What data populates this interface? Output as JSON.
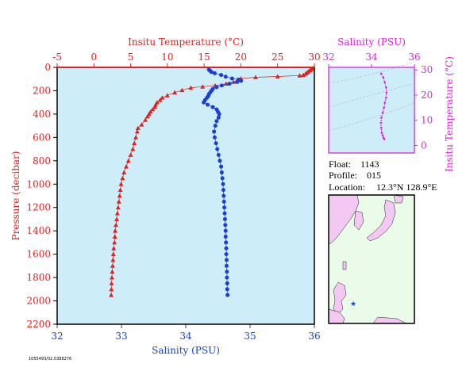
{
  "chart_data": [
    {
      "type": "scatter",
      "title": "",
      "ylabel": "Pressure (decibar)",
      "ylim": [
        0,
        2200
      ],
      "y_reversed": true,
      "y_ticks": [
        "0",
        "200",
        "400",
        "600",
        "800",
        "1000",
        "1200",
        "1400",
        "1600",
        "1800",
        "2000",
        "2200"
      ],
      "x_top_label": "Insitu Temperature (°C)",
      "x_top_lim": [
        -5,
        30
      ],
      "x_top_ticks": [
        "-5",
        "0",
        "5",
        "10",
        "15",
        "20",
        "25",
        "30"
      ],
      "x_bottom_label": "Salinity (PSU)",
      "x_bottom_lim": [
        32,
        36
      ],
      "x_bottom_ticks": [
        "32",
        "33",
        "34",
        "35",
        "36"
      ],
      "background": "#cdeef8",
      "series": [
        {
          "axis": "top",
          "marker": "triangle",
          "color": "#dd2222",
          "points": [
            [
              29.8,
              5
            ],
            [
              29.6,
              15
            ],
            [
              29.4,
              25
            ],
            [
              29.2,
              35
            ],
            [
              29.0,
              45
            ],
            [
              28.8,
              55
            ],
            [
              28.5,
              65
            ],
            [
              28.0,
              70
            ],
            [
              25.0,
              78
            ],
            [
              22.0,
              85
            ],
            [
              20.0,
              95
            ],
            [
              19.6,
              105
            ],
            [
              19.0,
              125
            ],
            [
              18.0,
              140
            ],
            [
              16.5,
              155
            ],
            [
              14.8,
              165
            ],
            [
              13.2,
              175
            ],
            [
              12.0,
              195
            ],
            [
              11.0,
              215
            ],
            [
              10.0,
              240
            ],
            [
              9.3,
              260
            ],
            [
              9.0,
              280
            ],
            [
              8.6,
              300
            ],
            [
              8.4,
              320
            ],
            [
              8.3,
              340
            ],
            [
              8.0,
              360
            ],
            [
              7.7,
              380
            ],
            [
              7.5,
              400
            ],
            [
              7.3,
              420
            ],
            [
              7.0,
              450
            ],
            [
              6.5,
              490
            ],
            [
              6.0,
              520
            ],
            [
              5.9,
              550
            ],
            [
              5.7,
              600
            ],
            [
              5.5,
              650
            ],
            [
              5.3,
              700
            ],
            [
              5.0,
              750
            ],
            [
              4.7,
              800
            ],
            [
              4.4,
              850
            ],
            [
              4.1,
              900
            ],
            [
              3.9,
              950
            ],
            [
              3.7,
              1000
            ],
            [
              3.6,
              1050
            ],
            [
              3.5,
              1100
            ],
            [
              3.4,
              1150
            ],
            [
              3.3,
              1200
            ],
            [
              3.2,
              1250
            ],
            [
              3.1,
              1300
            ],
            [
              3.0,
              1350
            ],
            [
              2.9,
              1400
            ],
            [
              2.85,
              1450
            ],
            [
              2.8,
              1500
            ],
            [
              2.7,
              1550
            ],
            [
              2.65,
              1600
            ],
            [
              2.6,
              1650
            ],
            [
              2.55,
              1700
            ],
            [
              2.5,
              1750
            ],
            [
              2.45,
              1800
            ],
            [
              2.4,
              1850
            ],
            [
              2.38,
              1900
            ],
            [
              2.35,
              1950
            ]
          ]
        },
        {
          "axis": "bottom",
          "marker": "circle",
          "color": "#1a3fd0",
          "points": [
            [
              34.36,
              20
            ],
            [
              34.38,
              30
            ],
            [
              34.4,
              40
            ],
            [
              34.45,
              50
            ],
            [
              34.55,
              65
            ],
            [
              34.62,
              80
            ],
            [
              34.72,
              95
            ],
            [
              34.82,
              105
            ],
            [
              34.86,
              115
            ],
            [
              34.8,
              125
            ],
            [
              34.68,
              140
            ],
            [
              34.56,
              155
            ],
            [
              34.48,
              170
            ],
            [
              34.42,
              185
            ],
            [
              34.4,
              200
            ],
            [
              34.38,
              215
            ],
            [
              34.36,
              230
            ],
            [
              34.35,
              245
            ],
            [
              34.33,
              260
            ],
            [
              34.3,
              280
            ],
            [
              34.28,
              300
            ],
            [
              34.34,
              320
            ],
            [
              34.42,
              340
            ],
            [
              34.48,
              360
            ],
            [
              34.5,
              380
            ],
            [
              34.52,
              400
            ],
            [
              34.51,
              430
            ],
            [
              34.48,
              460
            ],
            [
              34.46,
              500
            ],
            [
              34.44,
              550
            ],
            [
              34.45,
              600
            ],
            [
              34.47,
              650
            ],
            [
              34.49,
              700
            ],
            [
              34.51,
              750
            ],
            [
              34.53,
              800
            ],
            [
              34.55,
              850
            ],
            [
              34.56,
              900
            ],
            [
              34.57,
              950
            ],
            [
              34.58,
              1000
            ],
            [
              34.585,
              1050
            ],
            [
              34.59,
              1100
            ],
            [
              34.595,
              1150
            ],
            [
              34.6,
              1200
            ],
            [
              34.605,
              1250
            ],
            [
              34.61,
              1300
            ],
            [
              34.615,
              1350
            ],
            [
              34.62,
              1400
            ],
            [
              34.62,
              1450
            ],
            [
              34.625,
              1500
            ],
            [
              34.63,
              1550
            ],
            [
              34.63,
              1600
            ],
            [
              34.635,
              1650
            ],
            [
              34.635,
              1700
            ],
            [
              34.64,
              1750
            ],
            [
              34.64,
              1800
            ],
            [
              34.645,
              1850
            ],
            [
              34.645,
              1900
            ],
            [
              34.65,
              1950
            ]
          ]
        }
      ]
    },
    {
      "type": "scatter",
      "title": "Salinity (PSU)",
      "xlim": [
        32,
        36
      ],
      "x_ticks": [
        "32",
        "34",
        "36"
      ],
      "ylabel": "Insitu Temperature (°C)",
      "ylim": [
        -3,
        31
      ],
      "y_ticks": [
        "0",
        "10",
        "20",
        "30"
      ],
      "color": "#dd22dd",
      "background": "#cdeef8",
      "points": [
        [
          34.45,
          28.5
        ],
        [
          34.55,
          27
        ],
        [
          34.62,
          25
        ],
        [
          34.68,
          23
        ],
        [
          34.7,
          21
        ],
        [
          34.68,
          19
        ],
        [
          34.62,
          17
        ],
        [
          34.58,
          15
        ],
        [
          34.52,
          13
        ],
        [
          34.46,
          11
        ],
        [
          34.44,
          9
        ],
        [
          34.45,
          7
        ],
        [
          34.48,
          5
        ],
        [
          34.52,
          4
        ],
        [
          34.56,
          3
        ],
        [
          34.6,
          2.5
        ]
      ]
    }
  ],
  "info": {
    "float_label": "Float:",
    "float_value": "1143",
    "profile_label": "Profile:",
    "profile_value": "015",
    "location_label": "Location:",
    "location_value": "12.3°N 128.9°E"
  },
  "footer_code": "1055493/02.0388276",
  "map": {
    "ocean_color": "#eafbea",
    "land_color": "#f3c8f3",
    "marker": "★"
  }
}
